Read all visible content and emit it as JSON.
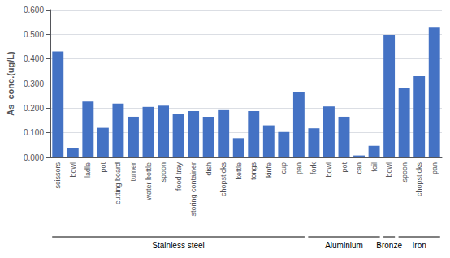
{
  "chart_data": {
    "type": "bar",
    "categories": [
      "scissors",
      "bowl",
      "ladle",
      "pot",
      "cutting board",
      "turner",
      "water bottle",
      "spoon",
      "food tray",
      "storing container",
      "dish",
      "chopsticks",
      "kettle",
      "tongs",
      "kinfe",
      "cup",
      "pan",
      "fork",
      "bowl",
      "pot",
      "can",
      "foil",
      "bowl",
      "spoon",
      "chopsticks",
      "pan"
    ],
    "values": [
      0.43,
      0.037,
      0.227,
      0.12,
      0.218,
      0.165,
      0.205,
      0.21,
      0.175,
      0.188,
      0.165,
      0.195,
      0.078,
      0.188,
      0.13,
      0.103,
      0.265,
      0.118,
      0.207,
      0.165,
      0.008,
      0.047,
      0.498,
      0.283,
      0.33,
      0.53
    ],
    "color": "#4472C4",
    "ylabel": "As  conc.(ug/L)",
    "ylim": [
      0.0,
      0.6
    ],
    "yticks": [
      {
        "value": 0.0,
        "label": "0.000"
      },
      {
        "value": 0.1,
        "label": "0.100"
      },
      {
        "value": 0.2,
        "label": "0.200"
      },
      {
        "value": 0.3,
        "label": "0.300"
      },
      {
        "value": 0.4,
        "label": "0.400"
      },
      {
        "value": 0.5,
        "label": "0.500"
      },
      {
        "value": 0.6,
        "label": "0.600"
      }
    ],
    "grid": true,
    "annotations": [
      {
        "text": "Stainless steel",
        "start": 0,
        "end": 16
      },
      {
        "text": "Aluminium",
        "start": 17,
        "end": 21
      },
      {
        "text": "Bronze",
        "start": 22,
        "end": 22
      },
      {
        "text": "Iron",
        "start": 23,
        "end": 25
      }
    ]
  }
}
